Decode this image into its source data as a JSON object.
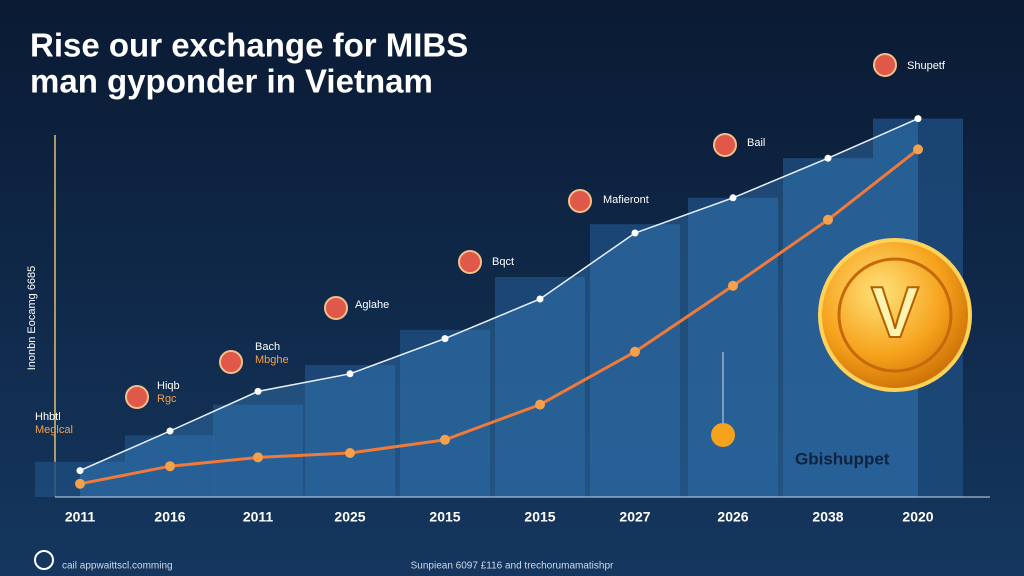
{
  "chart_data": {
    "type": "bar",
    "title_lines": [
      "Rise our exchange for MIBS",
      "man gyponder in Vietnam"
    ],
    "y_label": "Inonbn Eocamg 6685",
    "categories": [
      "2011",
      "2016",
      "2011",
      "2025",
      "2015",
      "2015",
      "2027",
      "2026",
      "2038",
      "2020"
    ],
    "ylim": [
      0,
      100
    ],
    "series": [
      {
        "type": "bar",
        "color": "#1d4b7c",
        "values": [
          8,
          14,
          21,
          30,
          38,
          50,
          62,
          68,
          77,
          86
        ]
      },
      {
        "type": "line",
        "color": "#e9f1ff",
        "values": [
          6,
          15,
          24,
          28,
          36,
          45,
          60,
          68,
          77,
          86
        ]
      },
      {
        "type": "line",
        "color": "#f07a3a",
        "values": [
          3,
          7,
          9,
          10,
          13,
          21,
          33,
          48,
          63,
          79
        ]
      }
    ],
    "annotations": [
      {
        "lines": [
          "Hhbtl",
          "Meglcal"
        ]
      },
      {
        "lines": [
          "Hiqb",
          "Rgc"
        ]
      },
      {
        "lines": [
          "Bach",
          "Mbghe"
        ]
      },
      {
        "lines": [
          "Aglahe"
        ]
      },
      {
        "lines": [
          "Bqct"
        ]
      },
      {
        "lines": [
          "Mafieront"
        ]
      },
      {
        "lines": [
          "Bail"
        ]
      },
      {
        "lines": [
          "Shupetf"
        ]
      }
    ],
    "coin_letter": "V",
    "watermark": "Gbishuppet",
    "footer": "Sunpiean 6097 £116 and trechorumamatishpr",
    "brand": "cail appwaittscl.comming"
  }
}
